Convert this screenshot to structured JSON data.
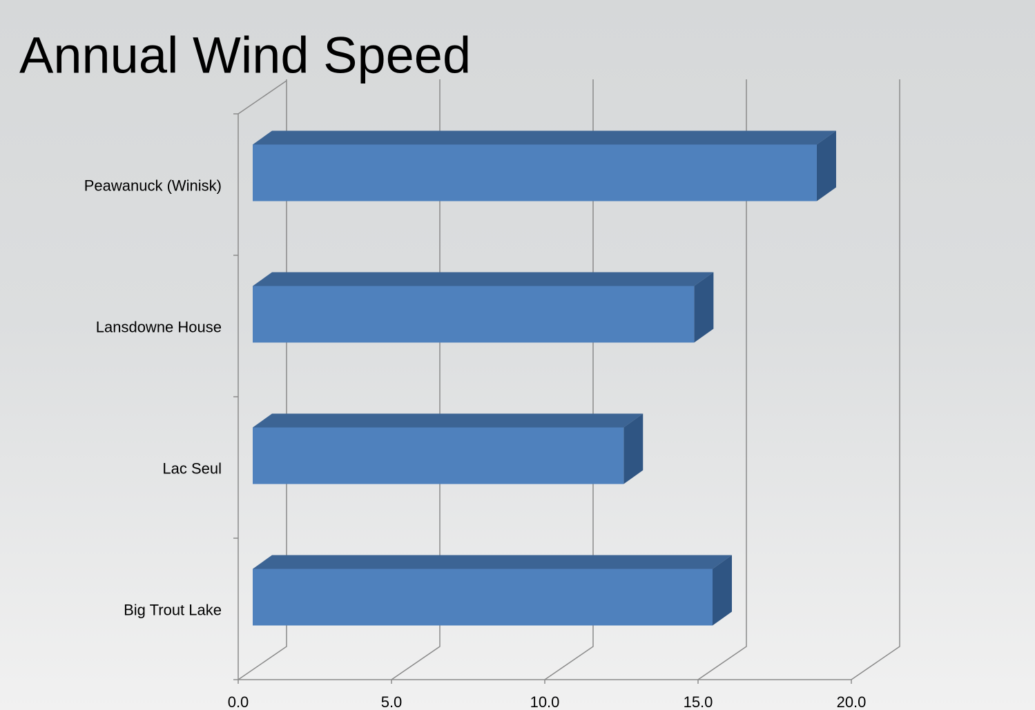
{
  "chart_data": {
    "type": "bar3d",
    "orientation": "horizontal",
    "title": "Annual Wind Speed",
    "categories": [
      "Peawanuck (Winisk)",
      "Lansdowne House",
      "Lac Seul",
      "Big Trout Lake"
    ],
    "values": [
      18.4,
      14.4,
      12.1,
      15.0
    ],
    "color": "#4f81bd",
    "xlim": [
      0,
      20
    ],
    "xticks": [
      {
        "value": 0,
        "label": "0.0"
      },
      {
        "value": 5,
        "label": "5.0"
      },
      {
        "value": 10,
        "label": "10.0"
      },
      {
        "value": 15,
        "label": "15.0"
      },
      {
        "value": 20,
        "label": "20.0"
      }
    ],
    "grid": true
  }
}
